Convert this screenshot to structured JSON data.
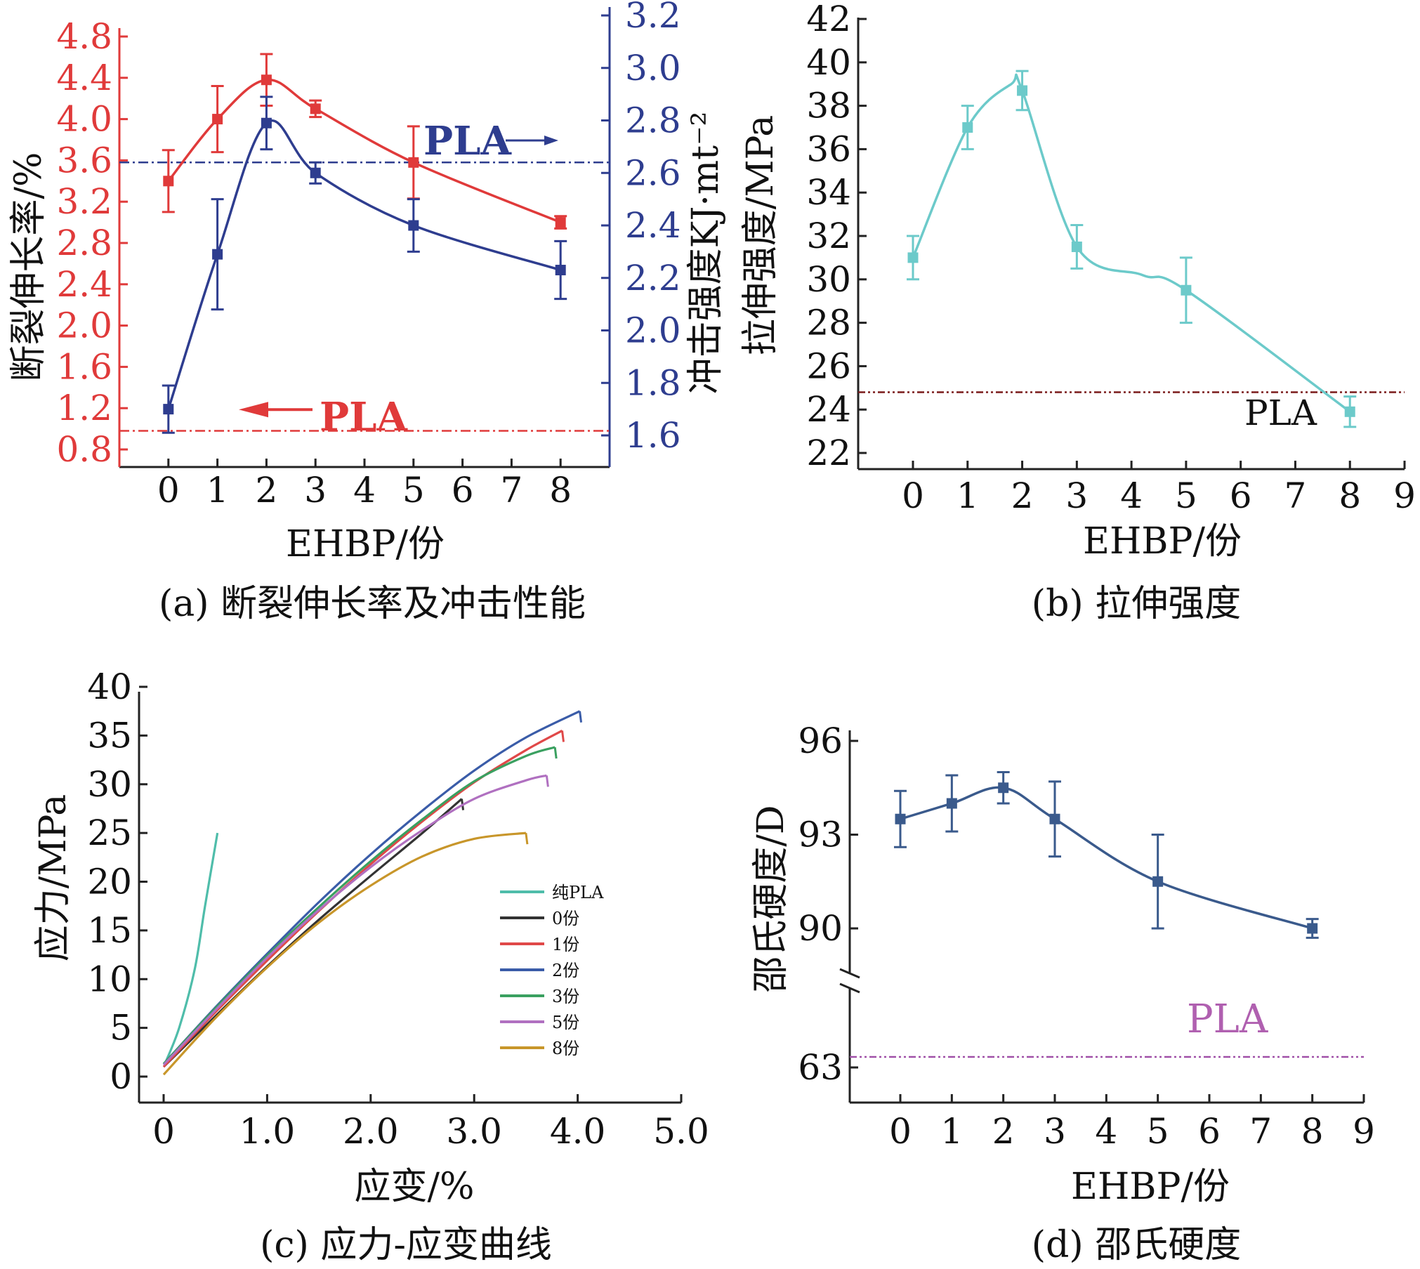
{
  "charts": {
    "a": {
      "caption": "(a) 断裂伸长率及冲击性能",
      "xlabel": "EHBP/份",
      "ylabel_left": "断裂伸长率/%",
      "ylabel_right": "冲击强度KJ·mt⁻²",
      "pla_left": "PLA",
      "pla_right": "PLA"
    },
    "b": {
      "caption": "(b) 拉伸强度",
      "xlabel": "EHBP/份",
      "ylabel": "拉伸强度/MPa",
      "pla": "PLA"
    },
    "c": {
      "caption": "(c) 应力-应变曲线",
      "xlabel": "应变/%",
      "ylabel": "应力/MPa"
    },
    "d": {
      "caption": "(d) 邵氏硬度",
      "xlabel": "EHBP/份",
      "ylabel": "邵氏硬度/D",
      "pla": "PLA"
    }
  },
  "chart_data": [
    {
      "id": "a",
      "type": "line",
      "x": [
        0,
        1,
        2,
        3,
        5,
        8
      ],
      "xticks": [
        0,
        1,
        2,
        3,
        4,
        5,
        6,
        7,
        8
      ],
      "ylim_left": [
        0.8,
        4.9
      ],
      "yticks_left": [
        0.8,
        1.2,
        1.6,
        2.0,
        2.4,
        2.8,
        3.2,
        3.6,
        4.0,
        4.4,
        4.8
      ],
      "ylim_right": [
        1.6,
        3.2
      ],
      "yticks_right": [
        1.6,
        1.8,
        2.0,
        2.2,
        2.4,
        2.6,
        2.8,
        3.0,
        3.2
      ],
      "series": [
        {
          "axis": "left",
          "color": "#e03a3a",
          "values": [
            3.4,
            4.0,
            4.38,
            4.1,
            3.58,
            3.0
          ],
          "errors": [
            0.3,
            0.32,
            0.25,
            0.08,
            0.35,
            0.06
          ]
        },
        {
          "axis": "right",
          "color": "#2e3d8f",
          "values": [
            1.7,
            2.29,
            2.79,
            2.6,
            2.4,
            2.23
          ],
          "errors": [
            0.09,
            0.21,
            0.1,
            0.04,
            0.1,
            0.11
          ]
        }
      ],
      "reference": [
        {
          "axis": "left",
          "value": 0.98,
          "color": "#e03a3a"
        },
        {
          "axis": "right",
          "value": 2.64,
          "color": "#2e3d8f"
        }
      ]
    },
    {
      "id": "b",
      "type": "line",
      "x": [
        0,
        1,
        2,
        3,
        5,
        8
      ],
      "xticks": [
        0,
        1,
        2,
        3,
        4,
        5,
        6,
        7,
        8,
        9
      ],
      "ylim": [
        21.5,
        42
      ],
      "yticks": [
        22,
        24,
        26,
        28,
        30,
        32,
        34,
        36,
        38,
        40,
        42
      ],
      "series": [
        {
          "color": "#6ccaca",
          "values": [
            31.0,
            37.0,
            38.7,
            31.5,
            29.5,
            23.9
          ],
          "errors": [
            1.0,
            1.0,
            0.9,
            1.0,
            1.5,
            0.7
          ]
        }
      ],
      "reference": [
        {
          "value": 24.8,
          "color": "#7a1a1a"
        }
      ]
    },
    {
      "id": "c",
      "type": "line",
      "xlim": [
        0,
        5
      ],
      "xticks": [
        0,
        1,
        2,
        3,
        4,
        5
      ],
      "xticklabels": [
        "0",
        "1.0",
        "2.0",
        "3.0",
        "4.0",
        "5.0"
      ],
      "ylim": [
        -2,
        40
      ],
      "yticks": [
        0,
        5,
        10,
        15,
        20,
        25,
        30,
        35,
        40
      ],
      "series": [
        {
          "name": "纯PLA",
          "color": "#4fbdaa",
          "x": [
            0.02,
            0.15,
            0.3,
            0.4,
            0.52
          ],
          "y": [
            1.5,
            5.0,
            11.0,
            17.5,
            25.0
          ]
        },
        {
          "name": "0份",
          "color": "#333333",
          "x": [
            0.0,
            0.5,
            1.0,
            1.5,
            2.0,
            2.5,
            2.88
          ],
          "y": [
            1.0,
            6.2,
            11.3,
            16.1,
            20.6,
            25.0,
            28.5
          ]
        },
        {
          "name": "1份",
          "color": "#e04848",
          "x": [
            0.0,
            0.5,
            1.0,
            1.5,
            2.0,
            2.5,
            3.0,
            3.5,
            3.85
          ],
          "y": [
            1.0,
            6.6,
            11.9,
            17.0,
            21.8,
            26.2,
            30.2,
            33.5,
            35.5
          ]
        },
        {
          "name": "2份",
          "color": "#3a5ca8",
          "x": [
            0.0,
            0.5,
            1.0,
            1.5,
            2.0,
            2.5,
            3.0,
            3.5,
            4.02
          ],
          "y": [
            1.3,
            7.1,
            12.6,
            17.9,
            22.8,
            27.3,
            31.4,
            34.8,
            37.5
          ]
        },
        {
          "name": "3份",
          "color": "#3aa060",
          "x": [
            0.0,
            0.5,
            1.0,
            1.5,
            2.0,
            2.5,
            3.0,
            3.5,
            3.78
          ],
          "y": [
            1.3,
            7.0,
            12.4,
            17.4,
            22.1,
            26.4,
            30.3,
            32.9,
            33.8
          ]
        },
        {
          "name": "5份",
          "color": "#b070c0",
          "x": [
            0.0,
            0.5,
            1.0,
            1.5,
            2.0,
            2.5,
            3.0,
            3.5,
            3.7
          ],
          "y": [
            1.2,
            6.8,
            12.2,
            17.1,
            21.5,
            25.3,
            28.5,
            30.4,
            30.9
          ]
        },
        {
          "name": "8份",
          "color": "#c8962a",
          "x": [
            0.0,
            0.5,
            1.0,
            1.5,
            2.0,
            2.5,
            3.0,
            3.5
          ],
          "y": [
            0.2,
            6.0,
            11.2,
            15.8,
            19.6,
            22.6,
            24.4,
            25.0
          ]
        }
      ]
    },
    {
      "id": "d",
      "type": "line",
      "x": [
        0,
        1,
        2,
        3,
        5,
        8
      ],
      "xticks": [
        0,
        1,
        2,
        3,
        4,
        5,
        6,
        7,
        8,
        9
      ],
      "yticks": [
        63,
        90,
        93,
        96
      ],
      "broken_axis": true,
      "series": [
        {
          "color": "#3a5a8c",
          "values": [
            93.5,
            94.0,
            94.5,
            93.5,
            91.5,
            90.0
          ],
          "errors": [
            0.9,
            0.9,
            0.5,
            1.2,
            1.5,
            0.3
          ]
        }
      ],
      "reference": [
        {
          "value": 63.5,
          "color": "#a050a8"
        }
      ]
    }
  ]
}
